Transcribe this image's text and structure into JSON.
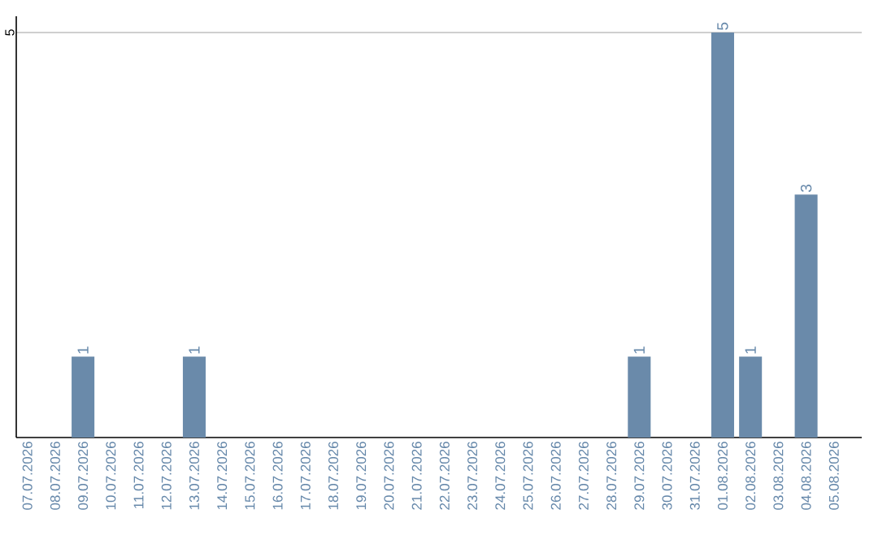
{
  "chart_data": {
    "type": "bar",
    "categories": [
      "07.07.2026",
      "08.07.2026",
      "09.07.2026",
      "10.07.2026",
      "11.07.2026",
      "12.07.2026",
      "13.07.2026",
      "14.07.2026",
      "15.07.2026",
      "16.07.2026",
      "17.07.2026",
      "18.07.2026",
      "19.07.2026",
      "20.07.2026",
      "21.07.2026",
      "22.07.2026",
      "23.07.2026",
      "24.07.2026",
      "25.07.2026",
      "26.07.2026",
      "27.07.2026",
      "28.07.2026",
      "29.07.2026",
      "30.07.2026",
      "31.07.2026",
      "01.08.2026",
      "02.08.2026",
      "03.08.2026",
      "04.08.2026",
      "05.08.2026"
    ],
    "values": [
      0,
      0,
      1,
      0,
      0,
      0,
      1,
      0,
      0,
      0,
      0,
      0,
      0,
      0,
      0,
      0,
      0,
      0,
      0,
      0,
      0,
      0,
      1,
      0,
      0,
      5,
      1,
      0,
      3,
      0
    ],
    "value_labels": [
      null,
      null,
      "1",
      null,
      null,
      null,
      "1",
      null,
      null,
      null,
      null,
      null,
      null,
      null,
      null,
      null,
      null,
      null,
      null,
      null,
      null,
      null,
      "1",
      null,
      null,
      "5",
      "1",
      null,
      "3",
      null
    ],
    "color": "#6a8aaa",
    "ylim": [
      0,
      5.2
    ],
    "yticks": [
      5
    ],
    "grid": "y"
  }
}
